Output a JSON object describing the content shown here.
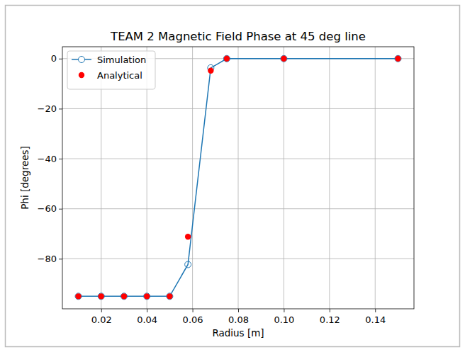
{
  "chart_data": {
    "type": "line",
    "title": "TEAM 2 Magnetic Field Phase at 45 deg line",
    "x_label": "Radius [m]",
    "y_label": "Phi [degrees]",
    "x": [
      0.01,
      0.02,
      0.03,
      0.04,
      0.05,
      0.058,
      0.068,
      0.075,
      0.1,
      0.15
    ],
    "series": [
      {
        "name": "Simulation",
        "color": "#1f77b4",
        "type": "line",
        "marker": "circle-open",
        "line_style": "solid",
        "values": [
          -95,
          -95,
          -95,
          -95,
          -95,
          -82.3,
          -3.7,
          0,
          0,
          0
        ]
      },
      {
        "name": "Analytical",
        "color": "#ff0000",
        "type": "scatter",
        "marker": "circle",
        "values": [
          -95,
          -95,
          -95,
          -95,
          -95,
          -71.2,
          -4.8,
          0,
          0,
          0
        ]
      }
    ],
    "xlim": [
      0.003,
      0.157
    ],
    "ylim": [
      -100,
      4.75
    ],
    "xticks": [
      0.02,
      0.04,
      0.06,
      0.08,
      0.1,
      0.12,
      0.14
    ],
    "yticks": [
      -80,
      -60,
      -40,
      -20,
      0
    ],
    "xtick_labels": [
      "0.02",
      "0.04",
      "0.06",
      "0.08",
      "0.10",
      "0.12",
      "0.14"
    ],
    "grid": true,
    "legend": "upper-left"
  }
}
